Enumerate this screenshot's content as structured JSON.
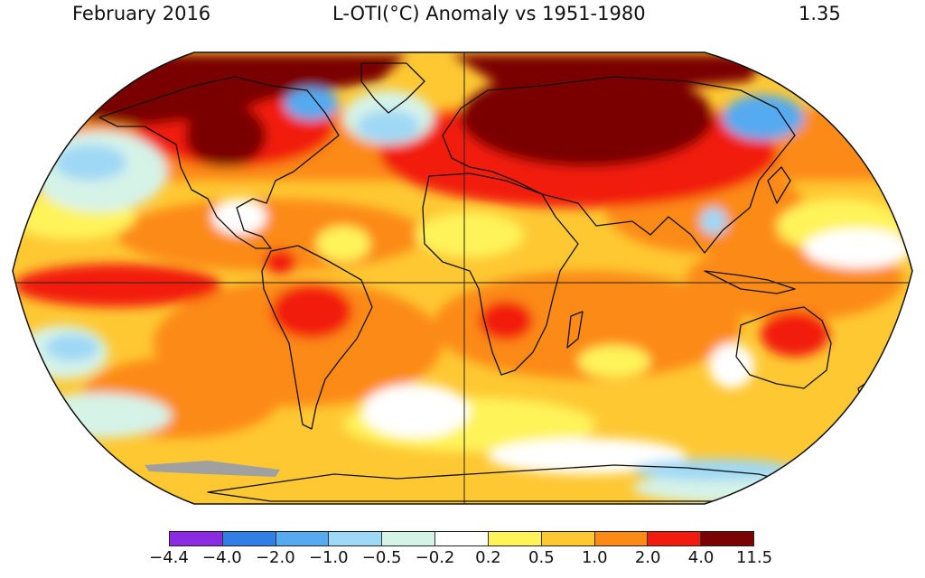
{
  "header": {
    "date": "February 2016",
    "title": "L-OTI(°C) Anomaly vs 1951-1980",
    "global_value": "1.35"
  },
  "map": {
    "projection": "Robinson",
    "ocean_background_color": "#fec833",
    "land_outline_color": "#111111",
    "graticule": [
      "equator",
      "prime meridian"
    ],
    "no_data_color": "#a0a0a0"
  },
  "colorbar": {
    "colors": [
      "#8a2be2",
      "#2f7fe5",
      "#55aaf0",
      "#9fd8f5",
      "#d6f3e8",
      "#ffffff",
      "#fff35a",
      "#fec833",
      "#fc8a16",
      "#f21b0f",
      "#7a0404"
    ],
    "tick_labels": [
      "−4.4",
      "−4.0",
      "−2.0",
      "−1.0",
      "−0.5",
      "−0.2",
      "0.2",
      "0.5",
      "1.0",
      "2.0",
      "4.0",
      "11.5"
    ]
  }
}
